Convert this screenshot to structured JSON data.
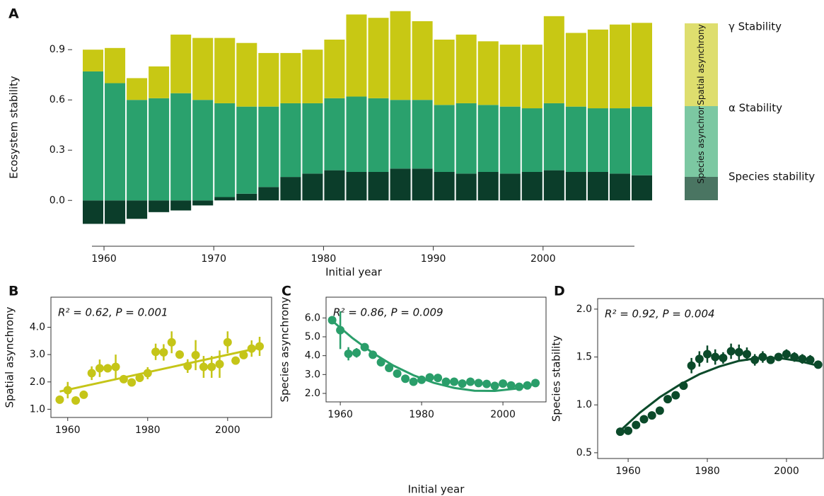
{
  "chart_data": [
    {
      "panel": "A",
      "type": "stacked_bar",
      "ylabel": "Ecosystem stability",
      "xlabel": "Initial year",
      "x": [
        1958,
        1960,
        1962,
        1964,
        1966,
        1968,
        1970,
        1972,
        1974,
        1976,
        1978,
        1980,
        1982,
        1984,
        1986,
        1988,
        1990,
        1992,
        1994,
        1996,
        1998,
        2000,
        2002,
        2004,
        2006,
        2008
      ],
      "xlim": [
        1958,
        2010
      ],
      "xticks": [
        1960,
        1970,
        1980,
        1990,
        2000
      ],
      "ylim": [
        -0.2,
        1.15
      ],
      "yticks": [
        {
          "value": 0,
          "label": "0.0"
        },
        {
          "value": 0.3,
          "label": "0.3"
        },
        {
          "value": 0.6,
          "label": "0.6"
        },
        {
          "value": 0.9,
          "label": "0.9"
        }
      ],
      "series": [
        {
          "name": "Species stability",
          "color": "#0b3d2a",
          "legend_color": "#4a7562",
          "values": [
            -0.14,
            -0.14,
            -0.11,
            -0.07,
            -0.06,
            -0.03,
            0.02,
            0.04,
            0.08,
            0.14,
            0.16,
            0.18,
            0.17,
            0.17,
            0.19,
            0.19,
            0.17,
            0.16,
            0.17,
            0.16,
            0.17,
            0.18,
            0.17,
            0.17,
            0.16,
            0.15
          ]
        },
        {
          "name": "Species asynchrony",
          "color": "#2aa16d",
          "legend_color": "#7cc8a2",
          "values": [
            0.77,
            0.7,
            0.6,
            0.61,
            0.64,
            0.6,
            0.56,
            0.52,
            0.48,
            0.44,
            0.42,
            0.43,
            0.45,
            0.44,
            0.41,
            0.41,
            0.4,
            0.42,
            0.4,
            0.4,
            0.38,
            0.4,
            0.39,
            0.38,
            0.39,
            0.41
          ]
        },
        {
          "name": "Spatial asynchrony",
          "color": "#c8c814",
          "legend_color": "#dede6e",
          "values": [
            0.13,
            0.21,
            0.13,
            0.19,
            0.35,
            0.37,
            0.39,
            0.38,
            0.32,
            0.3,
            0.32,
            0.35,
            0.49,
            0.48,
            0.53,
            0.47,
            0.39,
            0.41,
            0.38,
            0.37,
            0.38,
            0.52,
            0.44,
            0.47,
            0.5,
            0.5
          ]
        }
      ],
      "annotations": [
        {
          "text": "α Stability",
          "color": "#3aa66e"
        },
        {
          "text": "γ Stability",
          "color": "#8a9a2a"
        }
      ]
    },
    {
      "panel": "B",
      "type": "scatter_fit",
      "ylabel": "Spatial asynchrony",
      "annotation": "R² = 0.62, P = 0.001",
      "color": "#c5c518",
      "x": [
        1958,
        1960,
        1962,
        1964,
        1966,
        1968,
        1970,
        1972,
        1974,
        1976,
        1978,
        1980,
        1982,
        1984,
        1986,
        1988,
        1990,
        1992,
        1994,
        1996,
        1998,
        2000,
        2002,
        2004,
        2006,
        2008
      ],
      "values": [
        1.35,
        1.7,
        1.32,
        1.53,
        2.32,
        2.5,
        2.5,
        2.55,
        2.1,
        1.98,
        2.15,
        2.32,
        3.1,
        3.08,
        3.45,
        3.0,
        2.58,
        2.98,
        2.55,
        2.55,
        2.65,
        3.45,
        2.78,
        2.98,
        3.22,
        3.3
      ],
      "errors": [
        0,
        0.3,
        0,
        0.12,
        0.25,
        0.32,
        0.15,
        0.45,
        0.1,
        0.05,
        0.15,
        0.22,
        0.3,
        0.3,
        0.4,
        0.15,
        0.25,
        0.55,
        0.4,
        0.4,
        0.5,
        0.4,
        0.12,
        0.12,
        0.3,
        0.35
      ],
      "fit": {
        "x": [
          1958,
          2008
        ],
        "values": [
          1.65,
          3.25
        ]
      },
      "xlim": [
        1955.8,
        2011
      ],
      "xticks": [
        1960,
        1980,
        2000
      ],
      "ylim": [
        0.7,
        5.1
      ],
      "yticks": [
        {
          "value": 1,
          "label": "1.0"
        },
        {
          "value": 2,
          "label": "2.0"
        },
        {
          "value": 3,
          "label": "3.0"
        },
        {
          "value": 4,
          "label": "4.0"
        }
      ]
    },
    {
      "panel": "C",
      "type": "scatter_fit",
      "ylabel": "Species asynchrony",
      "xlabel": "Initial year",
      "annotation": "R² = 0.86, P = 0.009",
      "color": "#2a9e6a",
      "x": [
        1958,
        1960,
        1962,
        1964,
        1966,
        1968,
        1970,
        1972,
        1974,
        1976,
        1978,
        1980,
        1982,
        1984,
        1986,
        1988,
        1990,
        1992,
        1994,
        1996,
        1998,
        2000,
        2002,
        2004,
        2006,
        2008
      ],
      "values": [
        5.88,
        5.35,
        4.1,
        4.15,
        4.45,
        4.05,
        3.65,
        3.35,
        3.05,
        2.78,
        2.62,
        2.72,
        2.85,
        2.82,
        2.62,
        2.62,
        2.52,
        2.62,
        2.55,
        2.5,
        2.4,
        2.52,
        2.42,
        2.35,
        2.42,
        2.55
      ],
      "errors": [
        0,
        1.0,
        0.35,
        0.25,
        0.2,
        0.1,
        0,
        0,
        0,
        0,
        0,
        0,
        0,
        0,
        0,
        0,
        0,
        0,
        0,
        0,
        0,
        0,
        0,
        0,
        0,
        0
      ],
      "fit": {
        "x": [
          1958,
          1963,
          1968,
          1973,
          1978,
          1983,
          1988,
          1993,
          1998,
          2003,
          2008
        ],
        "values": [
          5.85,
          4.93,
          4.14,
          3.48,
          2.96,
          2.56,
          2.29,
          2.14,
          2.13,
          2.25,
          2.49
        ]
      },
      "xlim": [
        1956.5,
        2010.6
      ],
      "xticks": [
        1960,
        1980,
        2000
      ],
      "ylim": [
        1.55,
        7.1
      ],
      "yticks": [
        {
          "value": 2,
          "label": "2.0"
        },
        {
          "value": 3,
          "label": "3.0"
        },
        {
          "value": 4,
          "label": "4.0"
        },
        {
          "value": 5,
          "label": "5.0"
        },
        {
          "value": 6,
          "label": "6.0"
        }
      ]
    },
    {
      "panel": "D",
      "type": "scatter_fit",
      "ylabel": "Species stability",
      "annotation": "R² = 0.92, P = 0.004",
      "color": "#0b4a2a",
      "x": [
        1958,
        1960,
        1962,
        1964,
        1966,
        1968,
        1970,
        1972,
        1974,
        1976,
        1978,
        1980,
        1982,
        1984,
        1986,
        1988,
        1990,
        1992,
        1994,
        1996,
        1998,
        2000,
        2002,
        2004,
        2006,
        2008
      ],
      "values": [
        0.72,
        0.73,
        0.79,
        0.85,
        0.89,
        0.94,
        1.06,
        1.1,
        1.2,
        1.41,
        1.48,
        1.53,
        1.5,
        1.49,
        1.56,
        1.55,
        1.53,
        1.47,
        1.5,
        1.47,
        1.5,
        1.53,
        1.5,
        1.48,
        1.47,
        1.42
      ],
      "errors": [
        0,
        0,
        0,
        0,
        0,
        0.03,
        0.03,
        0.03,
        0.04,
        0.08,
        0.08,
        0.09,
        0.08,
        0.06,
        0.08,
        0.08,
        0.07,
        0.06,
        0.06,
        0.04,
        0.04,
        0.05,
        0.05,
        0.05,
        0.05,
        0.03
      ],
      "fit": {
        "x": [
          1958,
          1963,
          1968,
          1973,
          1978,
          1983,
          1988,
          1993,
          1998,
          2003,
          2008
        ],
        "values": [
          0.73,
          0.92,
          1.08,
          1.21,
          1.32,
          1.4,
          1.46,
          1.49,
          1.49,
          1.46,
          1.41
        ]
      },
      "xlim": [
        1952.3,
        2009.3
      ],
      "xticks": [
        1960,
        1980,
        2000
      ],
      "ylim": [
        0.44,
        2.11
      ],
      "yticks": [
        {
          "value": 0.5,
          "label": "0.5"
        },
        {
          "value": 1,
          "label": "1.0"
        },
        {
          "value": 1.5,
          "label": "1.5"
        },
        {
          "value": 2,
          "label": "2.0"
        }
      ]
    }
  ]
}
